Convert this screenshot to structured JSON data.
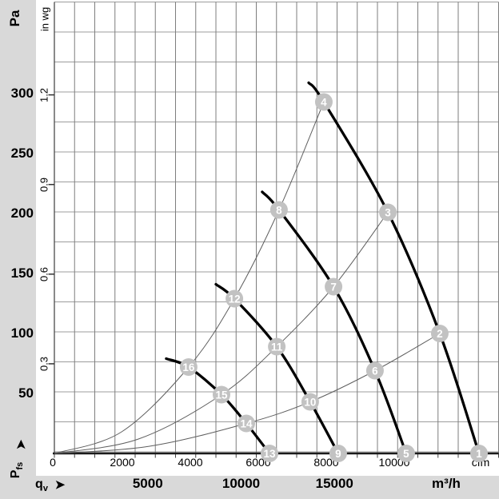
{
  "icons": {
    "arrow": "➤"
  },
  "colors": {
    "background": "#d9d9d9",
    "plot_background": "#ffffff",
    "grid_horizontal": "#9c9c9c",
    "grid_vertical": "#7e7e7e",
    "axis_line": "#1a1a1a",
    "fan_curve": "#000000",
    "system_curve": "#5f5f5f",
    "marker_fill": "#c2c2c2",
    "marker_text": "#ffffff"
  },
  "axes": {
    "pressure": {
      "symbol": "P",
      "symbol_sub": "fs",
      "unit_primary": "Pa",
      "unit_secondary": "in wg",
      "pa_ticks": [
        300,
        250,
        200,
        150,
        100,
        50
      ],
      "inwg_ticks": [
        "1.2",
        "0.9",
        "0.6",
        "0.3"
      ]
    },
    "flow": {
      "symbol": "q",
      "symbol_sub": "v",
      "unit_primary": "cfm",
      "unit_secondary": "m³/h",
      "cfm_ticks": [
        0,
        2000,
        4000,
        6000,
        8000,
        10000
      ],
      "m3h_ticks": [
        5000,
        10000,
        15000
      ]
    }
  },
  "chart_data": {
    "type": "line",
    "xlabel": "qv",
    "ylabel": "Pfs",
    "x_units": [
      "m³/h",
      "cfm"
    ],
    "y_units": [
      "Pa",
      "in wg"
    ],
    "x_range_m3h": [
      0,
      23800
    ],
    "y_range_pa": [
      0,
      375
    ],
    "grid": "on",
    "fan_curves": [
      {
        "name": "fan-curve-speed-1",
        "points": [
          [
            13620,
            309
          ],
          [
            14430,
            293
          ],
          [
            17860,
            201
          ],
          [
            20640,
            100
          ],
          [
            22740,
            0
          ]
        ]
      },
      {
        "name": "fan-curve-speed-2",
        "points": [
          [
            11130,
            218
          ],
          [
            12030,
            203
          ],
          [
            14950,
            139
          ],
          [
            17170,
            69
          ],
          [
            18840,
            0
          ]
        ]
      },
      {
        "name": "fan-curve-speed-3",
        "points": [
          [
            8650,
            141
          ],
          [
            9640,
            129
          ],
          [
            11910,
            89
          ],
          [
            13700,
            43
          ],
          [
            15200,
            0
          ]
        ]
      },
      {
        "name": "fan-curve-speed-4",
        "points": [
          [
            5990,
            79
          ],
          [
            7190,
            72
          ],
          [
            8950,
            49
          ],
          [
            10280,
            25
          ],
          [
            11520,
            0
          ]
        ]
      }
    ],
    "system_curves": [
      {
        "name": "system-curve-steep",
        "points": [
          [
            0,
            0
          ],
          [
            3600,
            18
          ],
          [
            7190,
            72
          ],
          [
            9640,
            129
          ],
          [
            12030,
            203
          ],
          [
            14430,
            293
          ]
        ]
      },
      {
        "name": "system-curve-middle",
        "points": [
          [
            0,
            0
          ],
          [
            4500,
            12
          ],
          [
            8950,
            49
          ],
          [
            11910,
            89
          ],
          [
            14950,
            139
          ],
          [
            17860,
            201
          ]
        ]
      },
      {
        "name": "system-curve-shallow",
        "points": [
          [
            0,
            0
          ],
          [
            5100,
            6
          ],
          [
            10280,
            25
          ],
          [
            13700,
            43
          ],
          [
            17170,
            69
          ],
          [
            20640,
            100
          ]
        ]
      }
    ],
    "markers": [
      {
        "label": "1",
        "q": 22740,
        "p": 0
      },
      {
        "label": "2",
        "q": 20640,
        "p": 100
      },
      {
        "label": "3",
        "q": 17860,
        "p": 201
      },
      {
        "label": "4",
        "q": 14430,
        "p": 293
      },
      {
        "label": "5",
        "q": 18840,
        "p": 0
      },
      {
        "label": "6",
        "q": 17170,
        "p": 69
      },
      {
        "label": "7",
        "q": 14950,
        "p": 139
      },
      {
        "label": "8",
        "q": 12030,
        "p": 203
      },
      {
        "label": "9",
        "q": 15200,
        "p": 0
      },
      {
        "label": "10",
        "q": 13700,
        "p": 43
      },
      {
        "label": "11",
        "q": 11910,
        "p": 89
      },
      {
        "label": "12",
        "q": 9640,
        "p": 129
      },
      {
        "label": "13",
        "q": 11520,
        "p": 0
      },
      {
        "label": "14",
        "q": 10280,
        "p": 25
      },
      {
        "label": "15",
        "q": 8950,
        "p": 49
      },
      {
        "label": "16",
        "q": 7190,
        "p": 72
      }
    ]
  }
}
